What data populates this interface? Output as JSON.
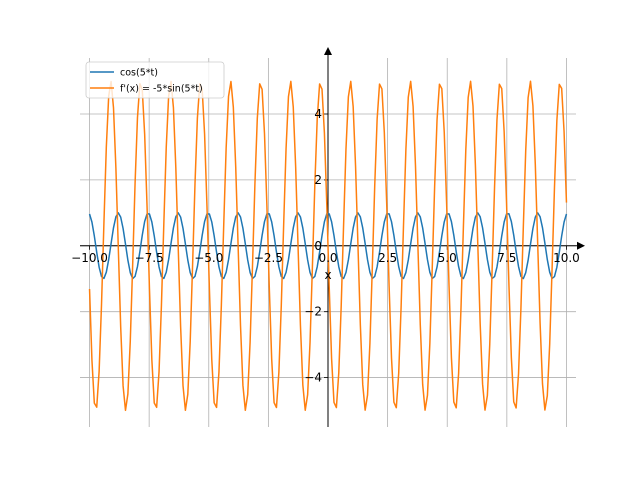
{
  "chart_data": {
    "type": "line",
    "xlabel": "x",
    "ylabel": "",
    "xlim": [
      -10.4,
      10.4
    ],
    "ylim": [
      -5.5,
      5.7
    ],
    "grid": true,
    "spine_position": "zero",
    "legend_position": "top-left",
    "x_ticks": [
      -10,
      -7.5,
      -5,
      -2.5,
      0,
      2.5,
      5,
      7.5,
      10
    ],
    "x_tick_labels": [
      "−10.0",
      "−7.5",
      "−5.0",
      "−2.5",
      "0.0",
      "2.5",
      "5.0",
      "7.5",
      "10.0"
    ],
    "y_ticks": [
      -4,
      -2,
      0,
      2,
      4
    ],
    "y_tick_labels": [
      "−4",
      "−2",
      "0",
      "2",
      "4"
    ],
    "x_range": [
      -10,
      10
    ],
    "sample_count": 200,
    "series": [
      {
        "name": "cos(5*t)",
        "expression": "cos(5*t)",
        "color": "#1f77b4"
      },
      {
        "name": "f'(x) = -5*sin(5*t)",
        "expression": "-5*sin(5*t)",
        "color": "#ff7f0e"
      }
    ]
  }
}
